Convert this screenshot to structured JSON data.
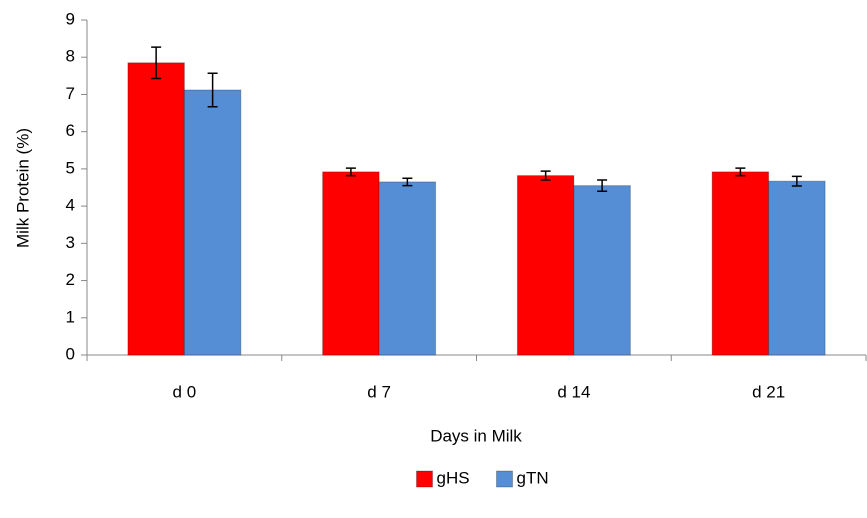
{
  "chart_data": {
    "type": "bar",
    "y_label": "Milk Protein (%)",
    "x_label": "Days in Milk",
    "categories": [
      "d 0",
      "d 7",
      "d 14",
      "d 21"
    ],
    "series": [
      {
        "name": "gHS",
        "color": "#ff0000",
        "values": [
          7.85,
          4.92,
          4.82,
          4.92
        ],
        "errors": [
          0.42,
          0.1,
          0.12,
          0.1
        ]
      },
      {
        "name": "gTN",
        "color": "#558ed5",
        "values": [
          7.12,
          4.65,
          4.55,
          4.67
        ],
        "errors": [
          0.45,
          0.1,
          0.15,
          0.13
        ]
      }
    ],
    "ylim": [
      0,
      9
    ],
    "yticks": [
      0,
      1,
      2,
      3,
      4,
      5,
      6,
      7,
      8,
      9
    ],
    "legend": "bottom"
  }
}
